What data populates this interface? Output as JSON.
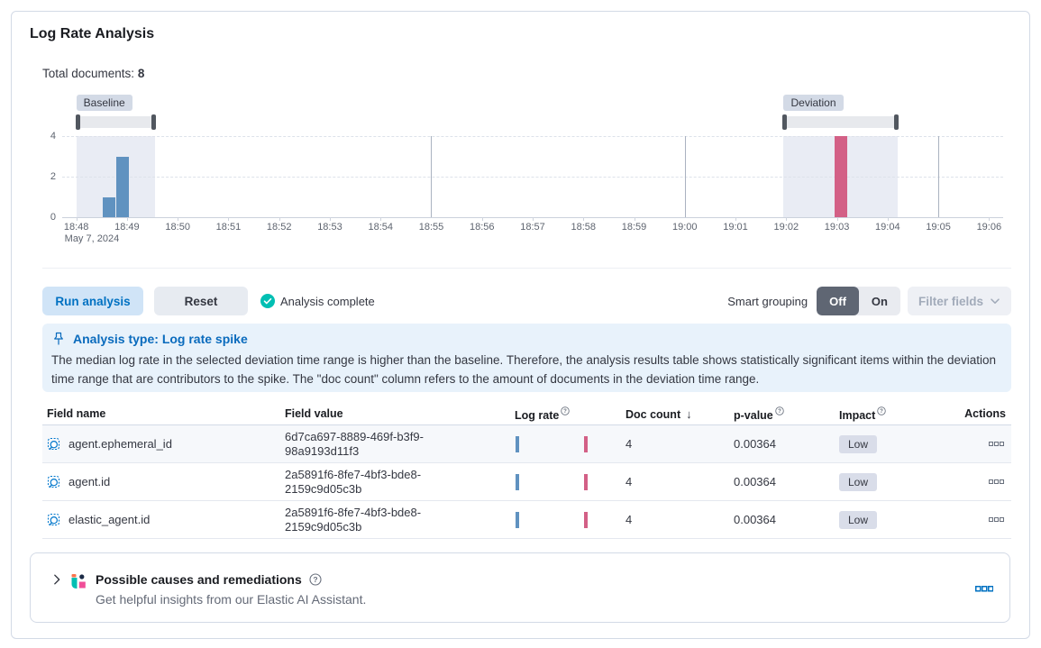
{
  "page": {
    "title": "Log Rate Analysis"
  },
  "summary": {
    "label": "Total documents:",
    "value": "8"
  },
  "chart_data": {
    "type": "bar",
    "x_ticks": [
      "18:48",
      "18:49",
      "18:50",
      "18:51",
      "18:52",
      "18:53",
      "18:54",
      "18:55",
      "18:56",
      "18:57",
      "18:58",
      "18:59",
      "19:00",
      "19:01",
      "19:02",
      "19:03",
      "19:04",
      "19:05",
      "19:06"
    ],
    "x_date_label": "May 7, 2024",
    "y_ticks": [
      "4",
      "2",
      "0"
    ],
    "ylim": [
      0,
      4
    ],
    "major_gridline_ticks": [
      7,
      12,
      17
    ],
    "baseline": {
      "label": "Baseline",
      "window_start_min": 0,
      "window_end_min": 1.55,
      "bars": [
        {
          "start_min": 0.52,
          "width_min": 0.25,
          "value": 1
        },
        {
          "start_min": 0.78,
          "width_min": 0.25,
          "value": 3
        }
      ]
    },
    "deviation": {
      "label": "Deviation",
      "window_start_min": 13.95,
      "window_end_min": 16.2,
      "bars": [
        {
          "start_min": 14.95,
          "width_min": 0.25,
          "value": 4
        }
      ]
    },
    "colors": {
      "baseline_bar": "#6092c0",
      "deviation_bar": "#d36086",
      "window_bg": "#e9ecf4"
    }
  },
  "toolbar": {
    "run_label": "Run analysis",
    "reset_label": "Reset",
    "status_label": "Analysis complete",
    "smart_grouping_label": "Smart grouping",
    "off_label": "Off",
    "on_label": "On",
    "filter_fields_label": "Filter fields"
  },
  "callout": {
    "title": "Analysis type: Log rate spike",
    "body": "The median log rate in the selected deviation time range is higher than the baseline. Therefore, the analysis results table shows statistically significant items within the deviation time range that are contributors to the spike. The \"doc count\" column refers to the amount of documents in the deviation time range."
  },
  "table": {
    "columns": [
      {
        "label": "Field name"
      },
      {
        "label": "Field value"
      },
      {
        "label": "Log rate",
        "info": true
      },
      {
        "label": "Doc count",
        "sorted": "desc"
      },
      {
        "label": "p-value",
        "info": true
      },
      {
        "label": "Impact",
        "info": true
      },
      {
        "label": "Actions"
      }
    ],
    "rows": [
      {
        "field_name": "agent.ephemeral_id",
        "field_value": "6d7ca697-8889-469f-b3f9-98a9193d11f3",
        "doc_count": "4",
        "p_value": "0.00364",
        "impact": "Low"
      },
      {
        "field_name": "agent.id",
        "field_value": "2a5891f6-8fe7-4bf3-bde8-2159c9d05c3b",
        "doc_count": "4",
        "p_value": "0.00364",
        "impact": "Low"
      },
      {
        "field_name": "elastic_agent.id",
        "field_value": "2a5891f6-8fe7-4bf3-bde8-2159c9d05c3b",
        "doc_count": "4",
        "p_value": "0.00364",
        "impact": "Low"
      }
    ]
  },
  "footer_panel": {
    "title": "Possible causes and remediations",
    "subtitle": "Get helpful insights from our Elastic AI Assistant."
  }
}
